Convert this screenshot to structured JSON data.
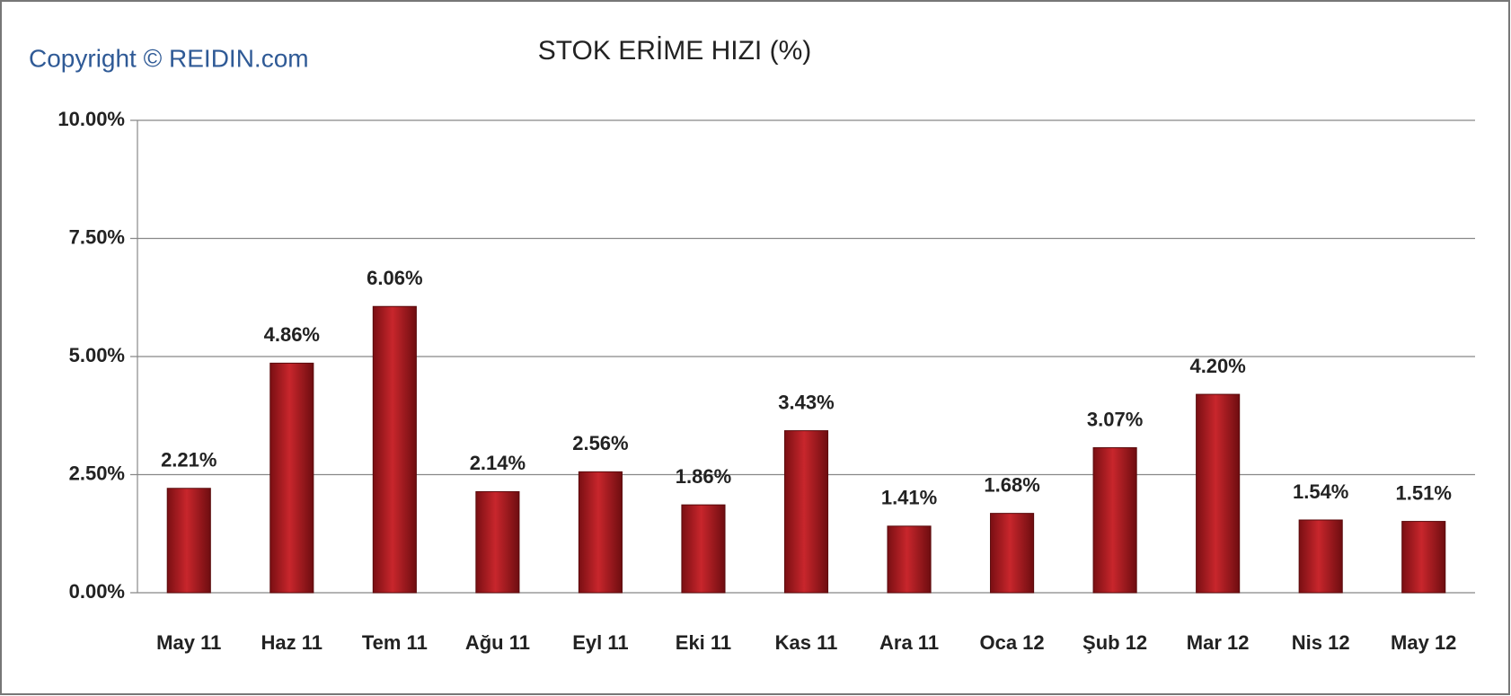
{
  "chart_data": {
    "type": "bar",
    "title": "STOK ERİME HIZI (%)",
    "annotations": [
      "Copyright © REIDIN.com"
    ],
    "categories": [
      "May 11",
      "Haz 11",
      "Tem 11",
      "Ağu 11",
      "Eyl 11",
      "Eki 11",
      "Kas 11",
      "Ara 11",
      "Oca 12",
      "Şub 12",
      "Mar 12",
      "Nis 12",
      "May 12"
    ],
    "values": [
      2.21,
      4.86,
      6.06,
      2.14,
      2.56,
      1.86,
      3.43,
      1.41,
      1.68,
      3.07,
      4.2,
      1.54,
      1.51
    ],
    "value_labels": [
      "2.21%",
      "4.86%",
      "6.06%",
      "2.14%",
      "2.56%",
      "1.86%",
      "3.43%",
      "1.41%",
      "1.68%",
      "3.07%",
      "4.20%",
      "1.54%",
      "1.51%"
    ],
    "color": "#c8262c",
    "ylim": [
      0,
      10
    ],
    "yticks": [
      {
        "value": 0,
        "label": "0.00%"
      },
      {
        "value": 2.5,
        "label": "2.50%"
      },
      {
        "value": 5,
        "label": "5.00%"
      },
      {
        "value": 7.5,
        "label": "7.50%"
      },
      {
        "value": 10,
        "label": "10.00%"
      }
    ],
    "grid": true
  }
}
